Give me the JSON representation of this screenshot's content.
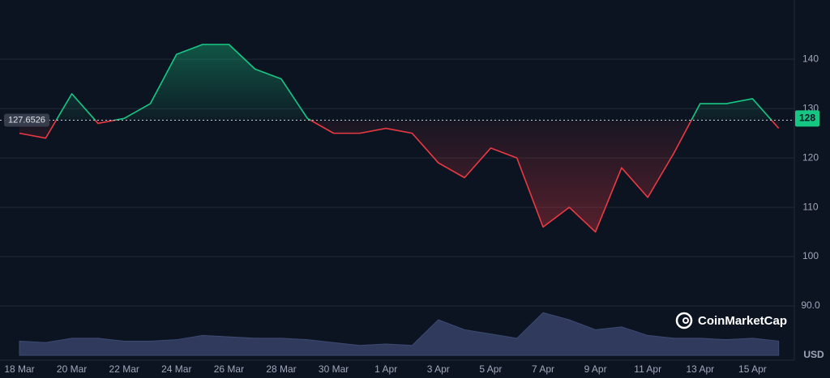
{
  "chart_data": {
    "type": "line",
    "categories": [
      "18 Mar",
      null,
      "20 Mar",
      null,
      "22 Mar",
      null,
      "24 Mar",
      null,
      "26 Mar",
      null,
      "28 Mar",
      null,
      "30 Mar",
      null,
      "1 Apr",
      null,
      "3 Apr",
      null,
      "5 Apr",
      null,
      "7 Apr",
      null,
      "9 Apr",
      null,
      "11 Apr",
      null,
      "13 Apr",
      null,
      "15 Apr",
      null
    ],
    "values": [
      125,
      124,
      133,
      127,
      128,
      131,
      141,
      143,
      143,
      138,
      136,
      128,
      125,
      125,
      126,
      125,
      119,
      116,
      122,
      120,
      106,
      110,
      105,
      118,
      112,
      121,
      131,
      131,
      132,
      126
    ],
    "volume": [
      10,
      9,
      12,
      12,
      10,
      10,
      11,
      14,
      13,
      12,
      12,
      11,
      9,
      7,
      8,
      7,
      25,
      18,
      15,
      12,
      30,
      25,
      18,
      20,
      14,
      12,
      12,
      11,
      12,
      10
    ],
    "baseline": {
      "value": 127.6526,
      "label": "127.6526"
    },
    "current_price": 128,
    "ylim": [
      80,
      152
    ],
    "yticks": [
      {
        "value": 90,
        "label": "90.0"
      },
      100,
      110,
      120,
      130,
      140
    ],
    "y2lim": [
      0,
      250
    ],
    "unit": "USD",
    "brand": "CoinMarketCap",
    "up_color": "#16c784",
    "down_color": "#ea3943",
    "volume_color": "#2f3a5c",
    "grid": true
  }
}
